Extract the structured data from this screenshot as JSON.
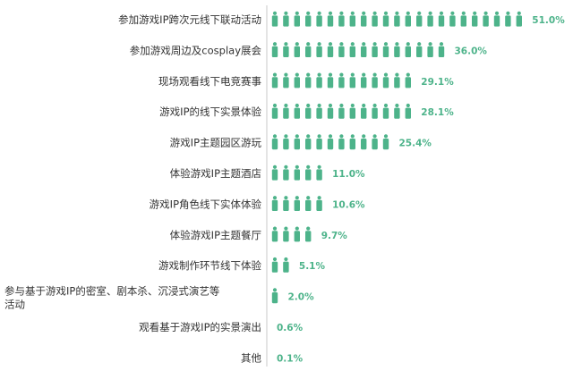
{
  "colors": {
    "accent": "#4db38a",
    "axis": "#c8c8c8",
    "text": "#333333"
  },
  "icon": "person-icon",
  "chart_data": {
    "type": "bar",
    "categories": [
      "参加游戏IP跨次元线下联动活动",
      "参加游戏周边及cosplay展会",
      "现场观看线下电竞赛事",
      "游戏IP的线下实景体验",
      "游戏IP主题园区游玩",
      "体验游戏IP主题酒店",
      "游戏IP角色线下实体体验",
      "体验游戏IP主题餐厅",
      "游戏制作环节线下体验",
      "参与基于游戏IP的密室、剧本杀、沉浸式演艺等活动",
      "观看基于游戏IP的实景演出",
      "其他"
    ],
    "values": [
      51.0,
      36.0,
      29.1,
      28.1,
      25.4,
      11.0,
      10.6,
      9.7,
      5.1,
      2.0,
      0.6,
      0.1
    ],
    "value_labels": [
      "51.0%",
      "36.0%",
      "29.1%",
      "28.1%",
      "25.4%",
      "11.0%",
      "10.6%",
      "9.7%",
      "5.1%",
      "2.0%",
      "0.6%",
      "0.1%"
    ],
    "xlim": [
      0,
      51.0
    ],
    "unit": "%",
    "orientation": "horizontal",
    "grid": false,
    "legend": false
  }
}
